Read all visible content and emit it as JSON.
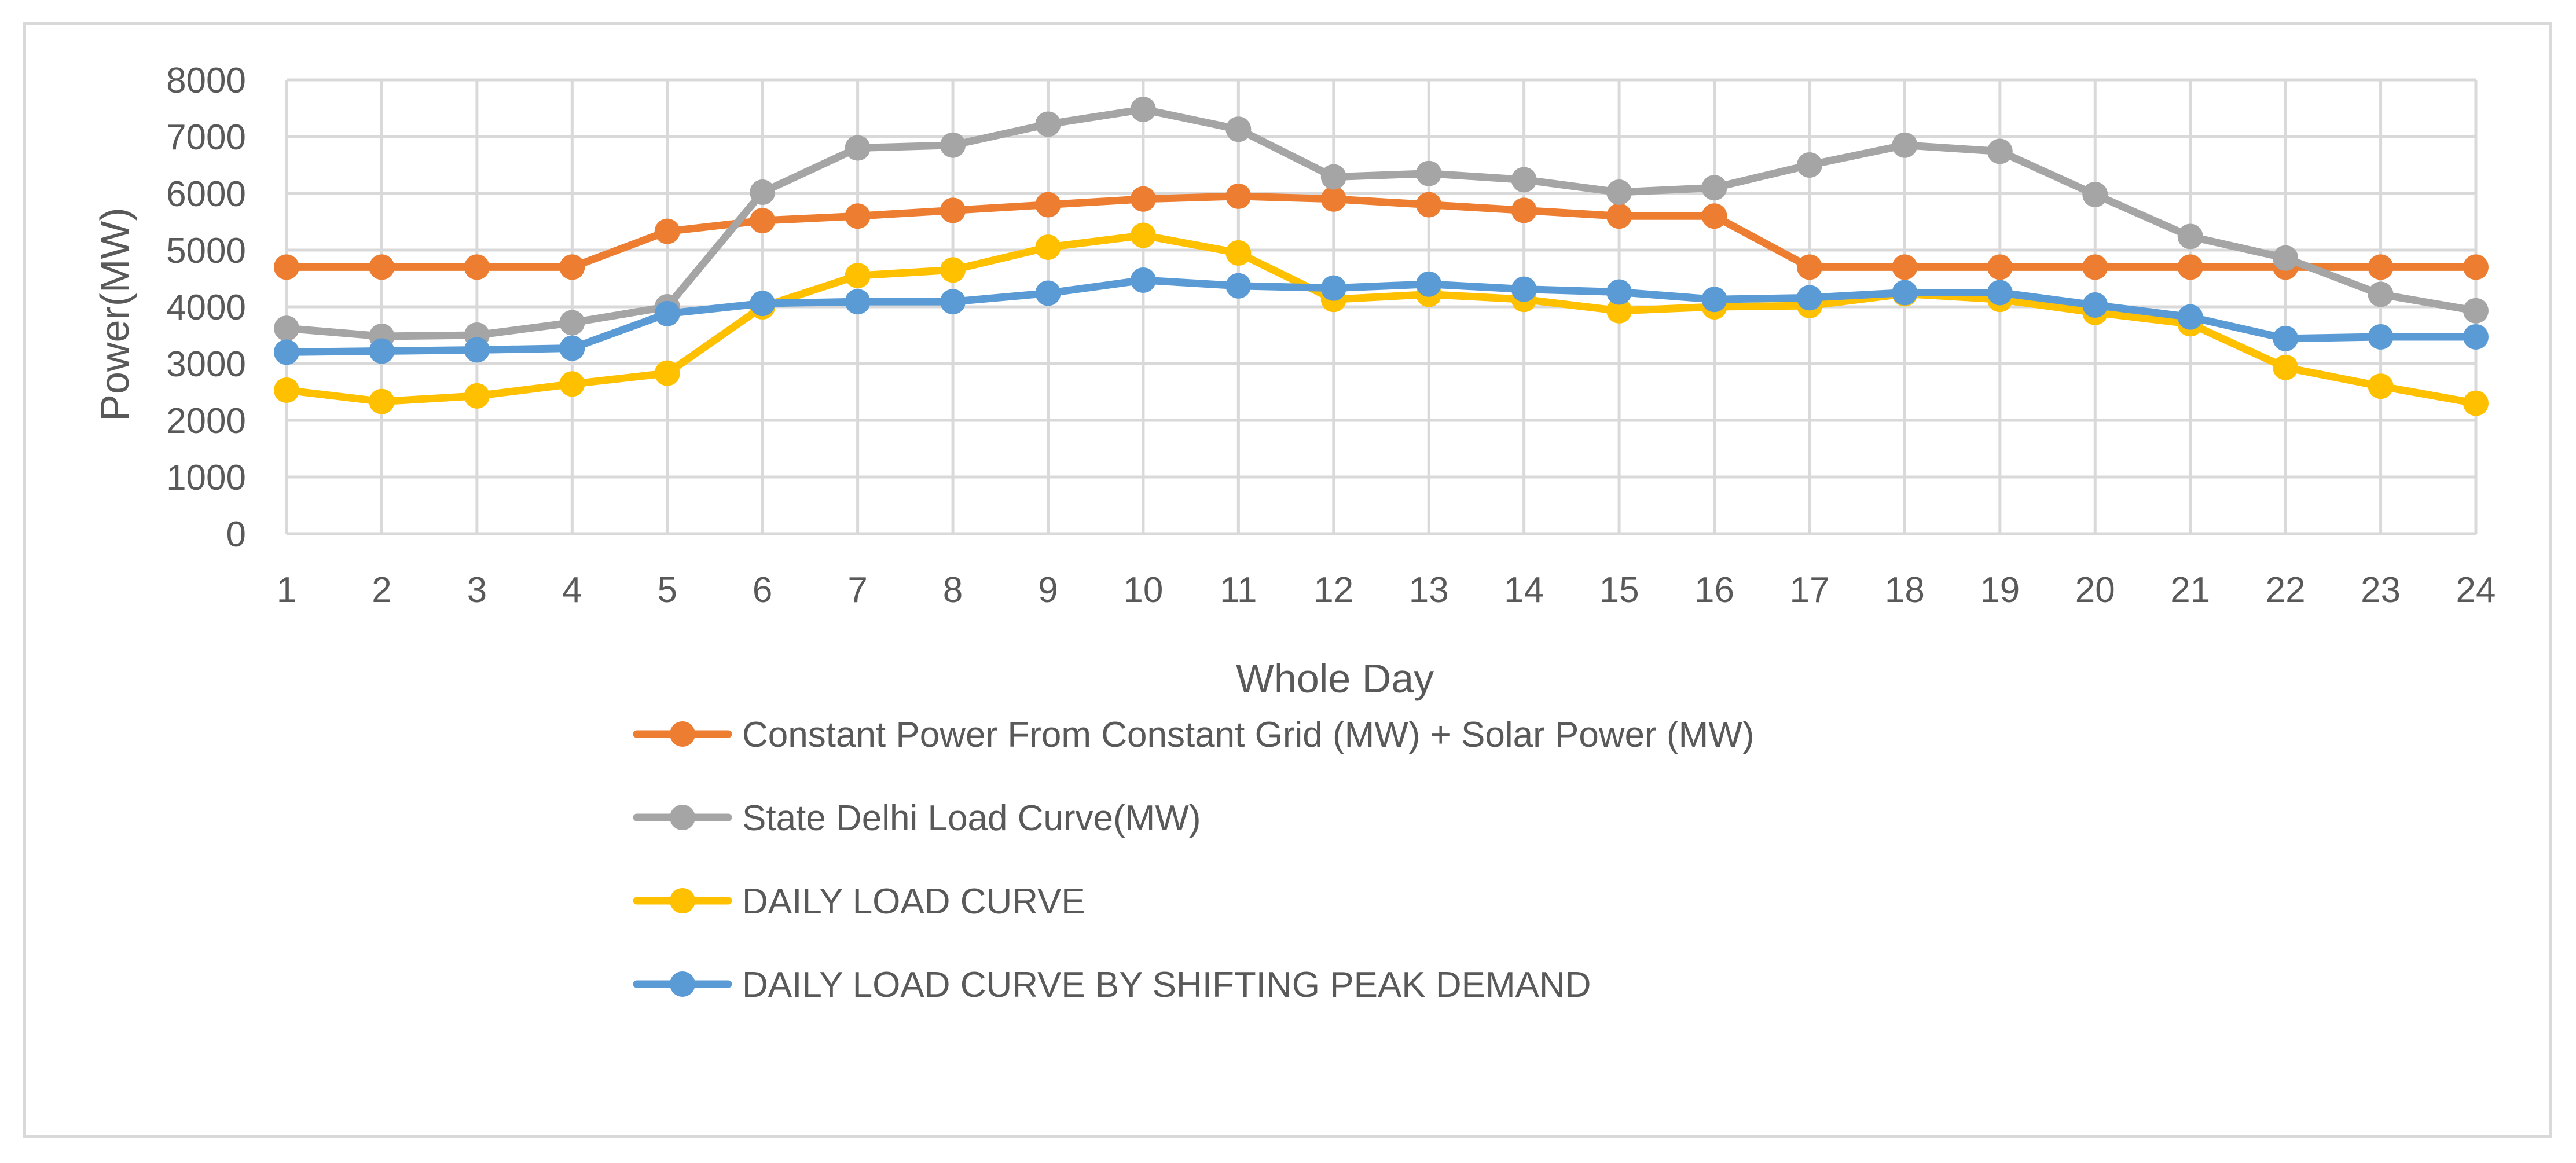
{
  "chart_data": {
    "type": "line",
    "title": "",
    "xlabel": "Whole Day",
    "ylabel": "Power(MW)",
    "ylim": [
      0,
      8000
    ],
    "yticks": [
      0,
      1000,
      2000,
      3000,
      4000,
      5000,
      6000,
      7000,
      8000
    ],
    "categories": [
      "1",
      "2",
      "3",
      "4",
      "5",
      "6",
      "7",
      "8",
      "9",
      "10",
      "11",
      "12",
      "13",
      "14",
      "15",
      "16",
      "17",
      "18",
      "19",
      "20",
      "21",
      "22",
      "23",
      "24"
    ],
    "grid": true,
    "legend_position": "bottom",
    "series": [
      {
        "name": "Constant Power From Constant Grid (MW) + Solar Power (MW)",
        "color": "#ed7d31",
        "values": [
          4700,
          4700,
          4700,
          4700,
          5330,
          5520,
          5600,
          5700,
          5800,
          5900,
          5950,
          5900,
          5800,
          5700,
          5600,
          5600,
          4700,
          4700,
          4700,
          4700,
          4700,
          4700,
          4700,
          4700
        ]
      },
      {
        "name": "State Delhi Load Curve(MW)",
        "color": "#a5a5a5",
        "values": [
          3620,
          3480,
          3500,
          3720,
          4000,
          6020,
          6800,
          6850,
          7220,
          7480,
          7130,
          6290,
          6350,
          6240,
          6020,
          6100,
          6500,
          6850,
          6740,
          5980,
          5240,
          4860,
          4220,
          3930
        ]
      },
      {
        "name": "DAILY LOAD CURVE",
        "color": "#ffc000",
        "values": [
          2530,
          2330,
          2430,
          2640,
          2830,
          4000,
          4550,
          4650,
          5050,
          5260,
          4950,
          4130,
          4220,
          4130,
          3930,
          4000,
          4020,
          4230,
          4130,
          3900,
          3700,
          2930,
          2600,
          2300
        ]
      },
      {
        "name": "DAILY LOAD CURVE BY SHIFTING PEAK DEMAND",
        "color": "#5b9bd5",
        "values": [
          3200,
          3220,
          3240,
          3270,
          3880,
          4060,
          4090,
          4090,
          4240,
          4470,
          4370,
          4330,
          4400,
          4310,
          4260,
          4130,
          4160,
          4250,
          4250,
          4030,
          3820,
          3440,
          3470,
          3470
        ]
      }
    ]
  }
}
